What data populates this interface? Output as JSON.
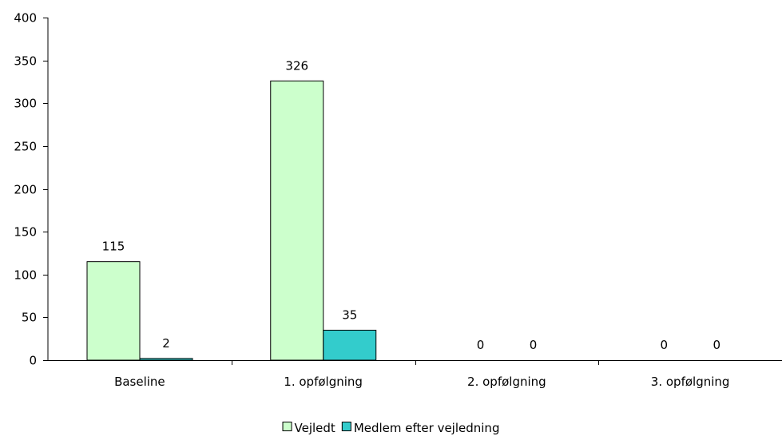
{
  "chart_data": {
    "type": "bar",
    "categories": [
      "Baseline",
      "1. opfølgning",
      "2. opfølgning",
      "3. opfølgning"
    ],
    "series": [
      {
        "name": "Vejledt",
        "values": [
          115,
          326,
          0,
          0
        ],
        "color": "#ccffcc"
      },
      {
        "name": "Medlem efter vejledning",
        "values": [
          2,
          35,
          0,
          0
        ],
        "color": "#33cccc"
      }
    ],
    "data_labels": [
      [
        "115",
        "326",
        "0",
        "0"
      ],
      [
        "2",
        "35",
        "0",
        "0"
      ]
    ],
    "y_ticks": [
      0,
      50,
      100,
      150,
      200,
      250,
      300,
      350,
      400
    ],
    "y_tick_labels": [
      "0",
      "50",
      "100",
      "150",
      "200",
      "250",
      "300",
      "350",
      "400"
    ],
    "ylim": [
      0,
      400
    ],
    "grid": false,
    "legend_position": "bottom-center",
    "bar_edge_color": "#000000",
    "axis_color": "#000000"
  }
}
